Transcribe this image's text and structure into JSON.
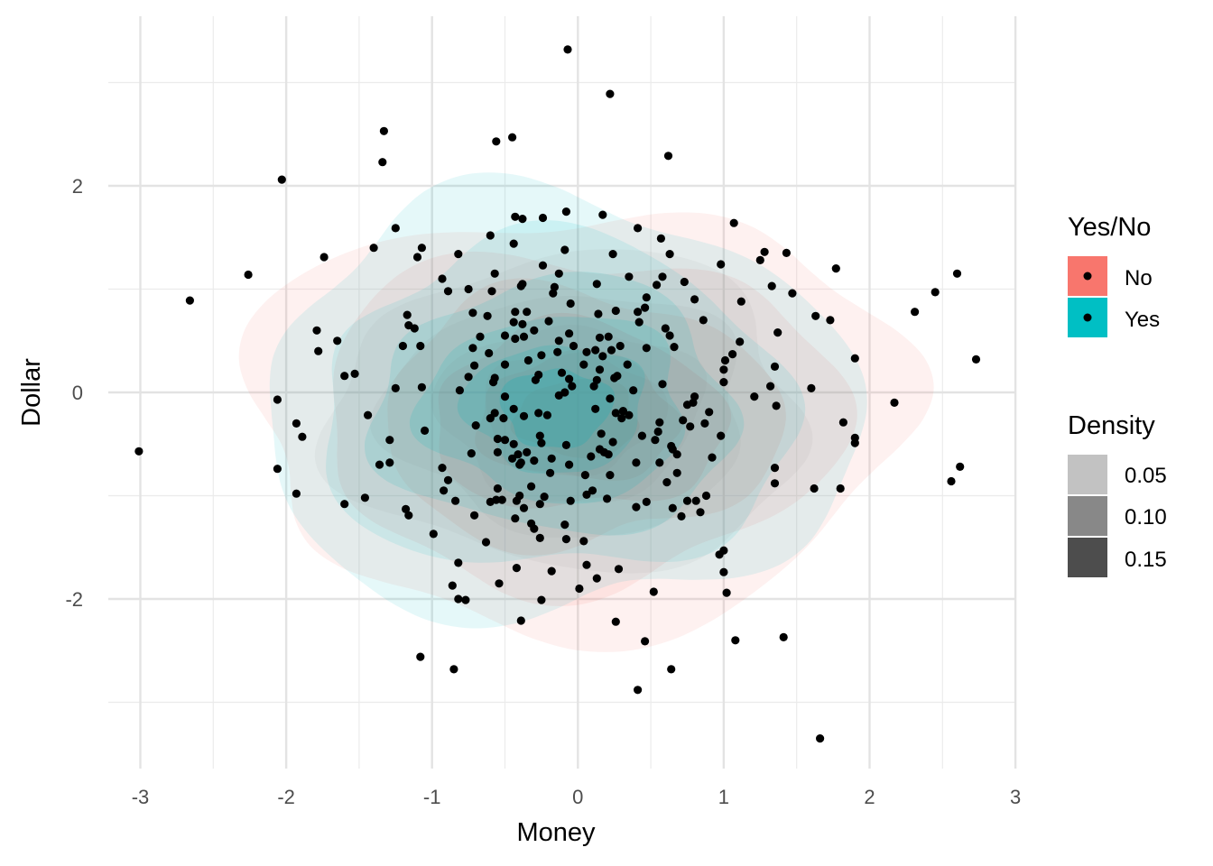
{
  "chart_data": {
    "type": "scatter",
    "subtype": "scatter with 2D density contours by group",
    "xlabel": "Money",
    "ylabel": "Dollar",
    "xlim": [
      -3.15,
      3.0
    ],
    "ylim": [
      -3.6,
      3.6
    ],
    "x_ticks": [
      -3,
      -2,
      -1,
      0,
      1,
      2,
      3
    ],
    "y_ticks": [
      -2,
      0,
      2
    ],
    "x_tick_labels": [
      "-3",
      "-2",
      "-1",
      "0",
      "1",
      "2",
      "3"
    ],
    "y_tick_labels": [
      "-2",
      "0",
      "2"
    ],
    "grid": true,
    "legend_position": "right",
    "legend": {
      "fill": {
        "title": "Yes/No",
        "entries": [
          {
            "label": "No",
            "color": "#F8766D"
          },
          {
            "label": "Yes",
            "color": "#00BFC4"
          }
        ]
      },
      "alpha": {
        "title": "Density",
        "entries": [
          {
            "label": "0.05",
            "color": "#c2c2c2"
          },
          {
            "label": "0.10",
            "color": "#888888"
          },
          {
            "label": "0.15",
            "color": "#4d4d4d"
          }
        ]
      }
    },
    "density_groups": [
      {
        "name": "No",
        "color": "#F8766D",
        "center": [
          0.0,
          -0.25
        ],
        "spread": [
          1.05,
          0.95
        ]
      },
      {
        "name": "Yes",
        "color": "#00BFC4",
        "center": [
          -0.15,
          -0.15
        ],
        "spread": [
          0.95,
          0.95
        ]
      }
    ],
    "points": [
      [
        -0.07,
        3.32
      ],
      [
        0.22,
        2.89
      ],
      [
        -1.33,
        2.53
      ],
      [
        -0.45,
        2.47
      ],
      [
        -0.56,
        2.43
      ],
      [
        0.62,
        2.29
      ],
      [
        -1.34,
        2.23
      ],
      [
        -2.03,
        2.06
      ],
      [
        -0.08,
        1.75
      ],
      [
        0.17,
        1.72
      ],
      [
        -0.43,
        1.7
      ],
      [
        -0.38,
        1.68
      ],
      [
        -0.24,
        1.69
      ],
      [
        1.07,
        1.64
      ],
      [
        -1.25,
        1.59
      ],
      [
        0.41,
        1.59
      ],
      [
        -0.6,
        1.52
      ],
      [
        0.57,
        1.49
      ],
      [
        -0.44,
        1.44
      ],
      [
        -1.4,
        1.4
      ],
      [
        -1.07,
        1.4
      ],
      [
        -0.09,
        1.38
      ],
      [
        1.28,
        1.36
      ],
      [
        1.43,
        1.35
      ],
      [
        0.24,
        1.34
      ],
      [
        0.63,
        1.34
      ],
      [
        -0.82,
        1.34
      ],
      [
        -1.1,
        1.31
      ],
      [
        -1.74,
        1.31
      ],
      [
        1.25,
        1.28
      ],
      [
        -0.24,
        1.23
      ],
      [
        0.98,
        1.24
      ],
      [
        1.77,
        1.2
      ],
      [
        -2.26,
        1.14
      ],
      [
        2.6,
        1.15
      ],
      [
        -0.57,
        1.15
      ],
      [
        -0.13,
        1.15
      ],
      [
        0.35,
        1.12
      ],
      [
        0.58,
        1.12
      ],
      [
        -0.93,
        1.1
      ],
      [
        0.73,
        1.07
      ],
      [
        -0.38,
        1.05
      ],
      [
        0.13,
        1.05
      ],
      [
        0.54,
        1.04
      ],
      [
        -0.39,
        1.03
      ],
      [
        -0.16,
        1.02
      ],
      [
        -0.59,
        0.98
      ],
      [
        1.33,
        1.03
      ],
      [
        -0.75,
        1.0
      ],
      [
        -0.89,
        0.98
      ],
      [
        -0.17,
        0.96
      ],
      [
        0.47,
        0.92
      ],
      [
        0.8,
        0.9
      ],
      [
        1.47,
        0.96
      ],
      [
        2.45,
        0.97
      ],
      [
        -2.66,
        0.89
      ],
      [
        -0.05,
        0.86
      ],
      [
        1.12,
        0.88
      ],
      [
        -0.43,
        0.78
      ],
      [
        0.26,
        0.79
      ],
      [
        0.41,
        0.78
      ],
      [
        0.46,
        0.82
      ],
      [
        -0.72,
        0.77
      ],
      [
        -0.35,
        0.78
      ],
      [
        2.31,
        0.78
      ],
      [
        -1.17,
        0.75
      ],
      [
        1.63,
        0.74
      ],
      [
        -0.62,
        0.74
      ],
      [
        0.14,
        0.76
      ],
      [
        1.73,
        0.7
      ],
      [
        -0.2,
        0.69
      ],
      [
        -1.16,
        0.65
      ],
      [
        0.86,
        0.7
      ],
      [
        0.42,
        0.68
      ],
      [
        -0.44,
        0.68
      ],
      [
        -0.38,
        0.66
      ],
      [
        -1.12,
        0.62
      ],
      [
        0.6,
        0.62
      ],
      [
        -1.79,
        0.6
      ],
      [
        1.37,
        0.58
      ],
      [
        -0.3,
        0.6
      ],
      [
        -0.06,
        0.57
      ],
      [
        -0.43,
        0.52
      ],
      [
        0.15,
        0.53
      ],
      [
        -0.37,
        0.54
      ],
      [
        -0.5,
        0.55
      ],
      [
        0.63,
        0.55
      ],
      [
        -0.67,
        0.54
      ],
      [
        -0.13,
        0.5
      ],
      [
        0.21,
        0.54
      ],
      [
        1.11,
        0.49
      ],
      [
        -1.65,
        0.5
      ],
      [
        -0.03,
        0.45
      ],
      [
        0.29,
        0.45
      ],
      [
        -1.08,
        0.45
      ],
      [
        -1.2,
        0.45
      ],
      [
        0.66,
        0.44
      ],
      [
        0.23,
        0.41
      ],
      [
        -0.72,
        0.43
      ],
      [
        0.47,
        0.43
      ],
      [
        0.12,
        0.41
      ],
      [
        0.06,
        0.39
      ],
      [
        1.06,
        0.37
      ],
      [
        -0.14,
        0.39
      ],
      [
        -0.25,
        0.36
      ],
      [
        -1.78,
        0.4
      ],
      [
        -0.61,
        0.38
      ],
      [
        0.17,
        0.35
      ],
      [
        1.9,
        0.33
      ],
      [
        1.01,
        0.31
      ],
      [
        -0.34,
        0.31
      ],
      [
        -0.71,
        0.26
      ],
      [
        -0.5,
        0.27
      ],
      [
        0.34,
        0.27
      ],
      [
        0.04,
        0.27
      ],
      [
        1.35,
        0.25
      ],
      [
        2.73,
        0.32
      ],
      [
        1.0,
        0.22
      ],
      [
        0.15,
        0.22
      ],
      [
        -0.11,
        0.19
      ],
      [
        -0.27,
        0.17
      ],
      [
        -1.53,
        0.18
      ],
      [
        -1.6,
        0.16
      ],
      [
        0.27,
        0.16
      ],
      [
        0.25,
        0.14
      ],
      [
        -0.75,
        0.15
      ],
      [
        -0.57,
        0.14
      ],
      [
        -0.06,
        0.13
      ],
      [
        -0.29,
        0.12
      ],
      [
        0.13,
        0.12
      ],
      [
        -0.58,
        0.1
      ],
      [
        1.0,
        0.1
      ],
      [
        0.58,
        0.08
      ],
      [
        0.11,
        0.06
      ],
      [
        -0.04,
        0.06
      ],
      [
        1.32,
        0.06
      ],
      [
        1.6,
        0.04
      ],
      [
        0.38,
        0.02
      ],
      [
        -1.25,
        0.04
      ],
      [
        -1.07,
        0.05
      ],
      [
        -0.81,
        0.02
      ],
      [
        -0.09,
        0.0
      ],
      [
        -0.5,
        -0.04
      ],
      [
        -0.13,
        -0.03
      ],
      [
        0.8,
        -0.04
      ],
      [
        0.22,
        -0.06
      ],
      [
        1.21,
        -0.04
      ],
      [
        2.17,
        -0.1
      ],
      [
        0.79,
        -0.1
      ],
      [
        0.75,
        -0.12
      ],
      [
        -2.06,
        -0.07
      ],
      [
        -0.44,
        -0.16
      ],
      [
        0.12,
        -0.16
      ],
      [
        1.36,
        -0.13
      ],
      [
        0.31,
        -0.18
      ],
      [
        0.26,
        -0.2
      ],
      [
        -0.57,
        -0.2
      ],
      [
        0.9,
        -0.19
      ],
      [
        0.35,
        -0.22
      ],
      [
        -0.21,
        -0.22
      ],
      [
        -0.27,
        -0.2
      ],
      [
        -0.37,
        -0.23
      ],
      [
        -0.6,
        -0.25
      ],
      [
        -0.51,
        -0.25
      ],
      [
        0.3,
        -0.25
      ],
      [
        -1.44,
        -0.22
      ],
      [
        0.72,
        -0.27
      ],
      [
        0.56,
        -0.29
      ],
      [
        0.87,
        -0.3
      ],
      [
        1.82,
        -0.29
      ],
      [
        -1.93,
        -0.3
      ],
      [
        0.77,
        -0.33
      ],
      [
        -1.05,
        -0.37
      ],
      [
        0.16,
        -0.4
      ],
      [
        -0.7,
        -0.32
      ],
      [
        0.55,
        -0.38
      ],
      [
        -0.26,
        -0.42
      ],
      [
        0.44,
        -0.42
      ],
      [
        0.98,
        -0.42
      ],
      [
        -0.55,
        -0.45
      ],
      [
        1.9,
        -0.44
      ],
      [
        1.9,
        -0.49
      ],
      [
        -1.89,
        -0.43
      ],
      [
        -0.5,
        -0.46
      ],
      [
        -0.25,
        -0.49
      ],
      [
        0.53,
        -0.46
      ],
      [
        0.24,
        -0.48
      ],
      [
        -0.08,
        -0.51
      ],
      [
        -0.44,
        -0.5
      ],
      [
        -1.29,
        -0.46
      ],
      [
        0.64,
        -0.52
      ],
      [
        0.65,
        -0.55
      ],
      [
        0.15,
        -0.55
      ],
      [
        0.18,
        -0.58
      ],
      [
        -0.55,
        -0.58
      ],
      [
        -0.35,
        -0.58
      ],
      [
        0.21,
        -0.6
      ],
      [
        -0.41,
        -0.6
      ],
      [
        0.68,
        -0.6
      ],
      [
        -0.73,
        -0.59
      ],
      [
        0.09,
        -0.62
      ],
      [
        -0.45,
        -0.64
      ],
      [
        -0.3,
        -0.66
      ],
      [
        -0.18,
        -0.64
      ],
      [
        0.92,
        -0.63
      ],
      [
        -0.39,
        -0.68
      ],
      [
        0.56,
        -0.68
      ],
      [
        -1.29,
        -0.68
      ],
      [
        0.4,
        -0.68
      ],
      [
        -1.36,
        -0.7
      ],
      [
        -0.4,
        -0.7
      ],
      [
        -0.06,
        -0.7
      ],
      [
        -0.93,
        -0.73
      ],
      [
        -2.06,
        -0.74
      ],
      [
        1.35,
        -0.73
      ],
      [
        2.62,
        -0.72
      ],
      [
        0.68,
        -0.78
      ],
      [
        -0.19,
        -0.78
      ],
      [
        0.22,
        -0.8
      ],
      [
        0.05,
        -0.8
      ],
      [
        -0.89,
        -0.85
      ],
      [
        0.61,
        -0.87
      ],
      [
        2.56,
        -0.86
      ],
      [
        1.35,
        -0.88
      ],
      [
        -0.32,
        -0.91
      ],
      [
        -0.55,
        -0.93
      ],
      [
        1.62,
        -0.93
      ],
      [
        1.8,
        -0.93
      ],
      [
        0.1,
        -0.95
      ],
      [
        -0.92,
        -0.95
      ],
      [
        -1.93,
        -0.98
      ],
      [
        0.06,
        -0.99
      ],
      [
        -0.4,
        -1.0
      ],
      [
        -0.23,
        -1.01
      ],
      [
        0.88,
        -1.0
      ],
      [
        0.2,
        -1.03
      ],
      [
        -1.46,
        -1.02
      ],
      [
        -0.56,
        -1.04
      ],
      [
        -0.52,
        -1.04
      ],
      [
        -0.84,
        -1.05
      ],
      [
        -0.05,
        -1.05
      ],
      [
        0.81,
        -1.05
      ],
      [
        -0.42,
        -1.05
      ],
      [
        0.47,
        -1.06
      ],
      [
        0.75,
        -1.05
      ],
      [
        -0.6,
        -1.06
      ],
      [
        -0.26,
        -1.08
      ],
      [
        -1.6,
        -1.08
      ],
      [
        0.4,
        -1.11
      ],
      [
        -0.37,
        -1.12
      ],
      [
        0.65,
        -1.12
      ],
      [
        0.84,
        -1.16
      ],
      [
        -1.18,
        -1.13
      ],
      [
        -0.71,
        -1.19
      ],
      [
        -1.16,
        -1.19
      ],
      [
        -0.43,
        -1.22
      ],
      [
        0.71,
        -1.2
      ],
      [
        -0.32,
        -1.27
      ],
      [
        -0.09,
        -1.28
      ],
      [
        -0.3,
        -1.32
      ],
      [
        -0.99,
        -1.37
      ],
      [
        -0.26,
        -1.41
      ],
      [
        -0.08,
        -1.42
      ],
      [
        0.04,
        -1.44
      ],
      [
        -0.63,
        -1.45
      ],
      [
        0.97,
        -1.57
      ],
      [
        1.0,
        -1.53
      ],
      [
        -0.82,
        -1.65
      ],
      [
        0.06,
        -1.67
      ],
      [
        -0.42,
        -1.7
      ],
      [
        0.28,
        -1.71
      ],
      [
        -0.18,
        -1.73
      ],
      [
        1.0,
        -1.74
      ],
      [
        0.13,
        -1.8
      ],
      [
        -0.86,
        -1.87
      ],
      [
        -0.54,
        -1.85
      ],
      [
        0.01,
        -1.9
      ],
      [
        0.52,
        -1.93
      ],
      [
        1.02,
        -1.94
      ],
      [
        -0.82,
        -2.0
      ],
      [
        -0.25,
        -2.01
      ],
      [
        -0.77,
        -2.01
      ],
      [
        0.26,
        -2.22
      ],
      [
        -0.39,
        -2.21
      ],
      [
        1.41,
        -2.37
      ],
      [
        0.46,
        -2.41
      ],
      [
        1.08,
        -2.4
      ],
      [
        -1.08,
        -2.56
      ],
      [
        -0.85,
        -2.68
      ],
      [
        0.64,
        -2.68
      ],
      [
        0.41,
        -2.88
      ],
      [
        1.66,
        -3.35
      ],
      [
        -3.01,
        -0.57
      ]
    ]
  }
}
